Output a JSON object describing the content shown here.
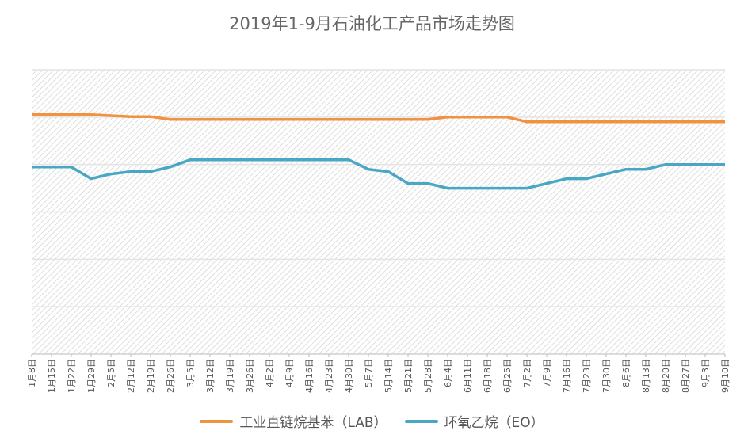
{
  "chart_data": {
    "type": "line",
    "title": "2019年1-9月石油化工产品市场走势图",
    "xlabel": "",
    "ylabel": "",
    "ylim": [
      0,
      6
    ],
    "grid": true,
    "legend_position": "bottom",
    "categories": [
      "1月8日",
      "1月15日",
      "1月22日",
      "1月29日",
      "2月5日",
      "2月12日",
      "2月19日",
      "2月26日",
      "3月5日",
      "3月12日",
      "3月19日",
      "3月26日",
      "4月2日",
      "4月9日",
      "4月16日",
      "4月23日",
      "4月30日",
      "5月7日",
      "5月14日",
      "5月21日",
      "5月28日",
      "6月4日",
      "6月11日",
      "6月18日",
      "6月25日",
      "7月2日",
      "7月9日",
      "7月16日",
      "7月23日",
      "7月30日",
      "8月6日",
      "8月13日",
      "8月20日",
      "8月27日",
      "9月3日",
      "9月10日"
    ],
    "series": [
      {
        "name": "工业直链烷基苯（LAB）",
        "color": "#f0923f",
        "values": [
          5.05,
          5.05,
          5.05,
          5.05,
          5.03,
          5.01,
          5.01,
          4.95,
          4.95,
          4.95,
          4.95,
          4.95,
          4.95,
          4.95,
          4.95,
          4.95,
          4.95,
          4.95,
          4.95,
          4.95,
          4.95,
          5.0,
          5.0,
          5.0,
          5.0,
          4.9,
          4.9,
          4.9,
          4.9,
          4.9,
          4.9,
          4.9,
          4.9,
          4.9,
          4.9,
          4.9
        ]
      },
      {
        "name": "环氧乙烷（EO）",
        "color": "#4aa7c4",
        "values": [
          3.95,
          3.95,
          3.95,
          3.7,
          3.8,
          3.85,
          3.85,
          3.95,
          4.1,
          4.1,
          4.1,
          4.1,
          4.1,
          4.1,
          4.1,
          4.1,
          4.1,
          3.9,
          3.85,
          3.6,
          3.6,
          3.5,
          3.5,
          3.5,
          3.5,
          3.5,
          3.6,
          3.7,
          3.7,
          3.8,
          3.9,
          3.9,
          4.0,
          4.0,
          4.0,
          4.0
        ]
      }
    ]
  }
}
